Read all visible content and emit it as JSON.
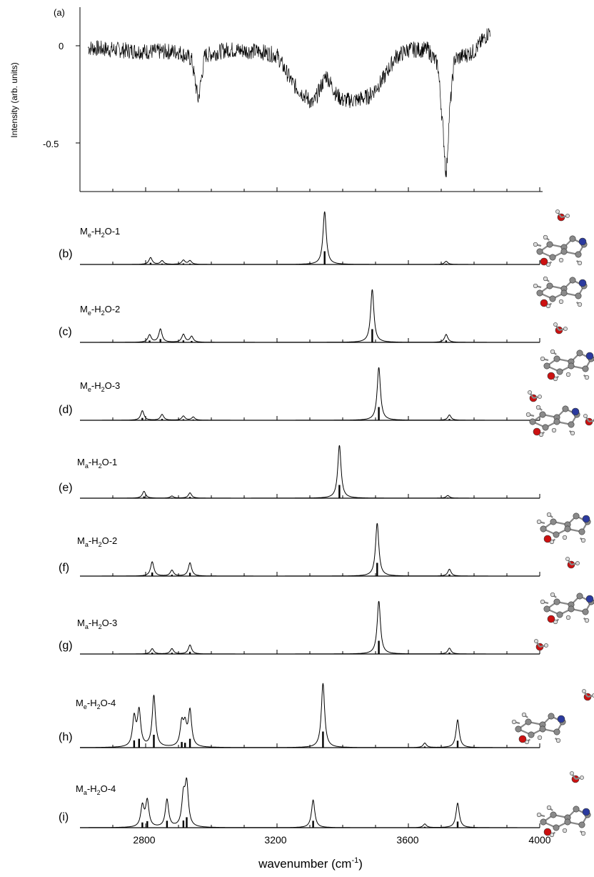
{
  "chart_data": {
    "type": "line",
    "xlabel_main": "wavenumber (cm",
    "xlabel_sup": "-1",
    "xlabel_tail": ")",
    "xlim": [
      2600,
      4000
    ],
    "x_ticks": [
      "2800",
      "3200",
      "3600",
      "4000"
    ],
    "top_panel": {
      "label": "(a)",
      "ylabel": "Intensity (arb. units)",
      "y_ticks": [
        "0",
        "-0.5"
      ],
      "ylim": [
        -0.75,
        0.15
      ],
      "xrange": [
        2625,
        3850
      ],
      "baseline_points": [
        [
          2625,
          -0.01
        ],
        [
          2700,
          -0.02
        ],
        [
          2800,
          -0.03
        ],
        [
          2900,
          -0.03
        ],
        [
          2940,
          -0.07
        ],
        [
          2960,
          -0.28
        ],
        [
          2980,
          -0.05
        ],
        [
          3050,
          -0.02
        ],
        [
          3150,
          -0.03
        ],
        [
          3200,
          -0.05
        ],
        [
          3250,
          -0.2
        ],
        [
          3310,
          -0.3
        ],
        [
          3350,
          -0.15
        ],
        [
          3380,
          -0.25
        ],
        [
          3400,
          -0.28
        ],
        [
          3440,
          -0.28
        ],
        [
          3480,
          -0.26
        ],
        [
          3520,
          -0.18
        ],
        [
          3560,
          -0.06
        ],
        [
          3600,
          -0.02
        ],
        [
          3660,
          -0.02
        ],
        [
          3690,
          -0.1
        ],
        [
          3705,
          -0.42
        ],
        [
          3715,
          -0.68
        ],
        [
          3725,
          -0.35
        ],
        [
          3740,
          -0.07
        ],
        [
          3800,
          -0.03
        ],
        [
          3850,
          0.08
        ]
      ]
    },
    "series": [
      {
        "label": "(b)",
        "name_main": "M",
        "name_sub": "e",
        "name_mid": "-H",
        "name_sub2": "2",
        "name_end": "O-1",
        "sticks": [
          [
            2815,
            0.13
          ],
          [
            2850,
            0.07
          ],
          [
            2915,
            0.08
          ],
          [
            2935,
            0.07
          ],
          [
            3345,
            1.0
          ],
          [
            3715,
            0.06
          ]
        ]
      },
      {
        "label": "(c)",
        "name_main": "M",
        "name_sub": "e",
        "name_mid": "-H",
        "name_sub2": "2",
        "name_end": "O-2",
        "sticks": [
          [
            2812,
            0.14
          ],
          [
            2845,
            0.25
          ],
          [
            2915,
            0.15
          ],
          [
            2940,
            0.11
          ],
          [
            3490,
            1.0
          ],
          [
            3715,
            0.15
          ]
        ]
      },
      {
        "label": "(d)",
        "name_main": "M",
        "name_sub": "e",
        "name_mid": "-H",
        "name_sub2": "2",
        "name_end": "O-3",
        "sticks": [
          [
            2790,
            0.18
          ],
          [
            2850,
            0.11
          ],
          [
            2915,
            0.08
          ],
          [
            2945,
            0.06
          ],
          [
            3510,
            1.0
          ],
          [
            3725,
            0.1
          ]
        ]
      },
      {
        "label": "(e)",
        "name_main": "M",
        "name_sub": "a",
        "name_mid": "-H",
        "name_sub2": "2",
        "name_end": "O-1",
        "sticks": [
          [
            2795,
            0.13
          ],
          [
            2880,
            0.04
          ],
          [
            2935,
            0.1
          ],
          [
            3390,
            1.0
          ],
          [
            3720,
            0.05
          ]
        ]
      },
      {
        "label": "(f)",
        "name_main": "M",
        "name_sub": "a",
        "name_mid": "-H",
        "name_sub2": "2",
        "name_end": "O-2",
        "sticks": [
          [
            2820,
            0.27
          ],
          [
            2880,
            0.11
          ],
          [
            2935,
            0.25
          ],
          [
            3505,
            1.0
          ],
          [
            3725,
            0.13
          ]
        ]
      },
      {
        "label": "(g)",
        "name_main": "M",
        "name_sub": "a",
        "name_mid": "-H",
        "name_sub2": "2",
        "name_end": "O-3",
        "sticks": [
          [
            2820,
            0.1
          ],
          [
            2880,
            0.1
          ],
          [
            2935,
            0.17
          ],
          [
            3510,
            1.0
          ],
          [
            3725,
            0.11
          ]
        ]
      },
      {
        "label": "(h)",
        "name_main": "M",
        "name_sub": "e",
        "name_mid": "-H",
        "name_sub2": "2",
        "name_end": "O-4",
        "sticks": [
          [
            2765,
            0.45
          ],
          [
            2780,
            0.55
          ],
          [
            2825,
            0.8
          ],
          [
            2910,
            0.35
          ],
          [
            2920,
            0.3
          ],
          [
            2935,
            0.55
          ],
          [
            3340,
            1.0
          ],
          [
            3650,
            0.07
          ],
          [
            3750,
            0.43
          ]
        ]
      },
      {
        "label": "(i)",
        "name_main": "M",
        "name_sub": "a",
        "name_mid": "-H",
        "name_sub2": "2",
        "name_end": "O-4",
        "sticks": [
          [
            2790,
            0.4
          ],
          [
            2805,
            0.5
          ],
          [
            2865,
            0.53
          ],
          [
            2915,
            0.55
          ],
          [
            2925,
            0.8
          ],
          [
            3310,
            0.53
          ],
          [
            3650,
            0.07
          ],
          [
            3750,
            0.47
          ]
        ]
      }
    ]
  },
  "colors": {
    "line": "#000000",
    "oxygen": "#cc1111",
    "nitrogen": "#2b3a9e",
    "carbon": "#8a8a8a",
    "hydrogen": "#dddddd"
  }
}
